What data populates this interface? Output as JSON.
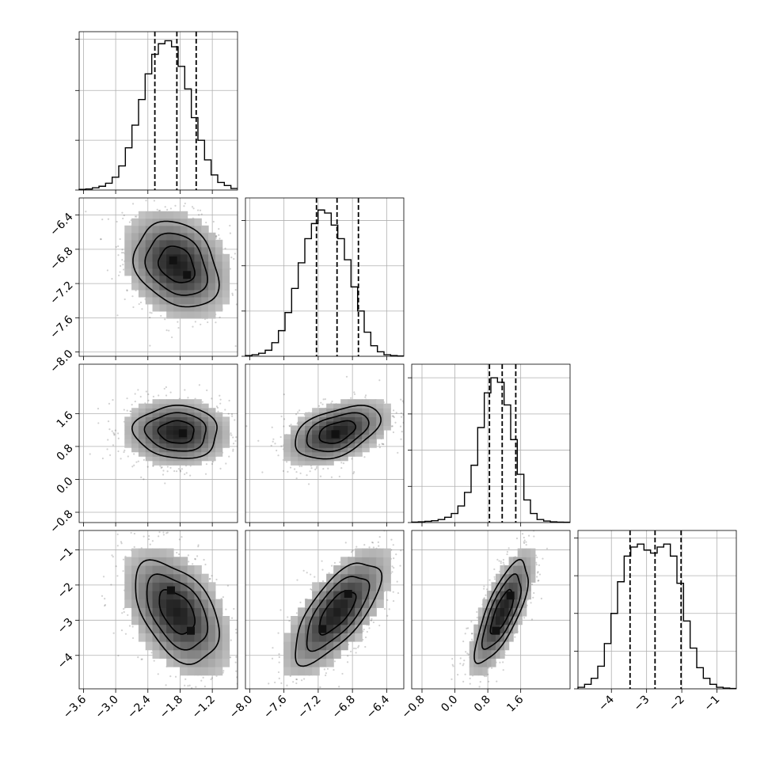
{
  "chart_data": {
    "type": "corner",
    "parameters": [
      {
        "ticks": [
          -3.6,
          -3.0,
          -2.4,
          -1.8,
          -1.2
        ],
        "tick_labels": [
          "−3.6",
          "−3.0",
          "−2.4",
          "−1.8",
          "−1.2"
        ],
        "range": [
          -3.68,
          -0.73
        ],
        "quantiles": [
          -2.27,
          -1.86,
          -1.5
        ],
        "median": -1.86,
        "sigma": 0.39,
        "hist_counts": [
          0.004,
          0.007,
          0.015,
          0.025,
          0.045,
          0.085,
          0.16,
          0.28,
          0.43,
          0.6,
          0.77,
          0.9,
          0.97,
          0.99,
          0.95,
          0.82,
          0.67,
          0.48,
          0.33,
          0.2,
          0.1,
          0.05,
          0.03,
          0.01
        ],
        "hist_ticks": [
          0,
          0.33,
          0.66,
          1.0
        ]
      },
      {
        "ticks": [
          -8.0,
          -7.6,
          -7.2,
          -6.8,
          -6.4
        ],
        "tick_labels": [
          "−8.0",
          "−7.6",
          "−7.2",
          "−6.8",
          "−6.4"
        ],
        "range": [
          -8.05,
          -6.2
        ],
        "quantiles": [
          -7.22,
          -6.98,
          -6.73
        ],
        "median": -6.98,
        "sigma": 0.25,
        "hist_counts": [
          0.005,
          0.01,
          0.02,
          0.04,
          0.09,
          0.17,
          0.29,
          0.45,
          0.62,
          0.78,
          0.88,
          0.97,
          0.95,
          0.87,
          0.78,
          0.64,
          0.46,
          0.3,
          0.16,
          0.07,
          0.03,
          0.01,
          0.005,
          0.002
        ],
        "hist_ticks": [
          0,
          0.3,
          0.6,
          0.9
        ]
      },
      {
        "ticks": [
          -0.8,
          0.0,
          0.8,
          1.6
        ],
        "tick_labels": [
          "−0.8",
          "0.0",
          "0.8",
          "1.6"
        ],
        "range": [
          -1.05,
          2.8
        ],
        "quantiles": [
          0.84,
          1.15,
          1.48
        ],
        "median": 1.15,
        "sigma": 0.32,
        "hist_counts": [
          0.003,
          0.005,
          0.008,
          0.012,
          0.02,
          0.035,
          0.06,
          0.11,
          0.2,
          0.38,
          0.63,
          0.86,
          0.96,
          0.93,
          0.78,
          0.55,
          0.32,
          0.15,
          0.06,
          0.02,
          0.01,
          0.005,
          0.003,
          0.002
        ],
        "hist_ticks": [
          0,
          0.24,
          0.48,
          0.72,
          0.96
        ]
      },
      {
        "ticks": [
          -4,
          -3,
          -2,
          -1
        ],
        "tick_labels": [
          "−4",
          "−3",
          "−2",
          "−1"
        ],
        "range": [
          -4.95,
          -0.45
        ],
        "quantiles": [
          -3.47,
          -2.76,
          -2.02
        ],
        "median": -2.76,
        "sigma": 0.72,
        "hist_counts": [
          0.01,
          0.03,
          0.07,
          0.15,
          0.3,
          0.5,
          0.71,
          0.88,
          0.94,
          0.96,
          0.92,
          0.9,
          0.94,
          0.96,
          0.88,
          0.7,
          0.45,
          0.27,
          0.14,
          0.07,
          0.03,
          0.01,
          0.005,
          0.002
        ],
        "hist_ticks": [
          0,
          0.25,
          0.5,
          0.75,
          1.0
        ]
      }
    ],
    "pairs": [
      {
        "row": 1,
        "col": 0,
        "correlation": -0.25,
        "modes": [
          [
            -1.93,
            -6.93
          ],
          [
            -1.67,
            -7.1
          ]
        ]
      },
      {
        "row": 2,
        "col": 0,
        "correlation": -0.05,
        "modes": [
          [
            -1.75,
            1.12
          ]
        ]
      },
      {
        "row": 2,
        "col": 1,
        "correlation": 0.45,
        "modes": [
          [
            -7.0,
            1.1
          ]
        ]
      },
      {
        "row": 3,
        "col": 0,
        "correlation": -0.45,
        "modes": [
          [
            -1.97,
            -2.15
          ],
          [
            -1.6,
            -3.3
          ]
        ]
      },
      {
        "row": 3,
        "col": 1,
        "correlation": 0.7,
        "modes": [
          [
            -7.15,
            -3.25
          ],
          [
            -6.85,
            -2.25
          ]
        ]
      },
      {
        "row": 3,
        "col": 2,
        "correlation": 0.75,
        "modes": [
          [
            1.0,
            -3.3
          ],
          [
            1.35,
            -2.3
          ]
        ]
      }
    ],
    "grid": true,
    "contour_levels": 3,
    "quantile_lines": "dashed"
  }
}
